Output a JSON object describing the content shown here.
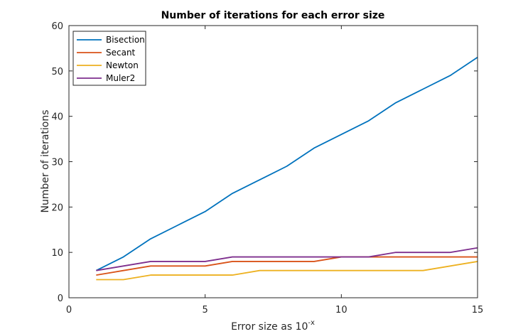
{
  "chart_data": {
    "type": "line",
    "title": "Number of iterations for each error size",
    "xlabel": {
      "base": "Error size as 10",
      "sup": "-x"
    },
    "ylabel": "Number of iterations",
    "xlim": [
      0,
      15
    ],
    "ylim": [
      0,
      60
    ],
    "xticks": [
      0,
      5,
      10,
      15
    ],
    "yticks": [
      0,
      10,
      20,
      30,
      40,
      50,
      60
    ],
    "grid": false,
    "legend_position": "top-left",
    "x": [
      1,
      2,
      3,
      4,
      5,
      6,
      7,
      8,
      9,
      10,
      11,
      12,
      13,
      14,
      15
    ],
    "series": [
      {
        "name": "Bisection",
        "color": "#0072BD",
        "values": [
          6,
          9,
          13,
          16,
          19,
          23,
          26,
          29,
          33,
          36,
          39,
          43,
          46,
          49,
          53
        ]
      },
      {
        "name": "Secant",
        "color": "#D95319",
        "values": [
          5,
          6,
          7,
          7,
          7,
          8,
          8,
          8,
          8,
          9,
          9,
          9,
          9,
          9,
          9
        ]
      },
      {
        "name": "Newton",
        "color": "#EDB120",
        "values": [
          4,
          4,
          5,
          5,
          5,
          5,
          6,
          6,
          6,
          6,
          6,
          6,
          6,
          7,
          8
        ]
      },
      {
        "name": "Muler2",
        "color": "#7E2F8E",
        "values": [
          6,
          7,
          8,
          8,
          8,
          9,
          9,
          9,
          9,
          9,
          9,
          10,
          10,
          10,
          11
        ]
      }
    ]
  }
}
